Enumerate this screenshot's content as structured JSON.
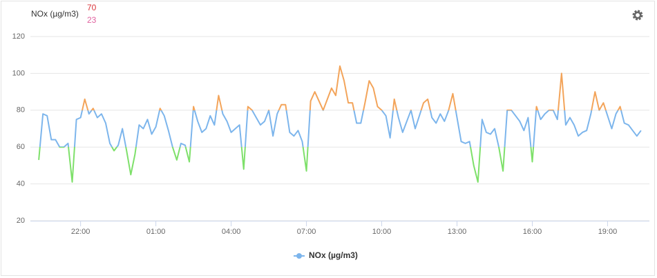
{
  "chart_data": {
    "type": "line",
    "title": "NOx (µg/m3)",
    "header_stats": [
      70,
      23
    ],
    "header_colors": [
      "#d9343a",
      "#e0609e"
    ],
    "x": [
      "20:20",
      "20:30",
      "20:40",
      "20:50",
      "21:00",
      "21:10",
      "21:20",
      "21:30",
      "21:40",
      "21:50",
      "22:00",
      "22:10",
      "22:20",
      "22:30",
      "22:40",
      "22:50",
      "23:00",
      "23:10",
      "23:20",
      "23:30",
      "23:40",
      "23:50",
      "00:00",
      "00:10",
      "00:20",
      "00:30",
      "00:40",
      "00:50",
      "01:00",
      "01:10",
      "01:20",
      "01:30",
      "01:40",
      "01:50",
      "02:00",
      "02:10",
      "02:20",
      "02:30",
      "02:40",
      "02:50",
      "03:00",
      "03:10",
      "03:20",
      "03:30",
      "03:40",
      "03:50",
      "04:00",
      "04:10",
      "04:20",
      "04:30",
      "04:40",
      "04:50",
      "05:00",
      "05:10",
      "05:20",
      "05:30",
      "05:40",
      "05:50",
      "06:00",
      "06:10",
      "06:20",
      "06:30",
      "06:40",
      "06:50",
      "07:00",
      "07:10",
      "07:20",
      "07:30",
      "07:40",
      "07:50",
      "08:00",
      "08:10",
      "08:20",
      "08:30",
      "08:40",
      "08:50",
      "09:00",
      "09:10",
      "09:20",
      "09:30",
      "09:40",
      "09:50",
      "10:00",
      "10:10",
      "10:20",
      "10:30",
      "10:40",
      "10:50",
      "11:00",
      "11:10",
      "11:20",
      "11:30",
      "11:40",
      "11:50",
      "12:00",
      "12:10",
      "12:20",
      "12:30",
      "12:40",
      "12:50",
      "13:00",
      "13:10",
      "13:20",
      "13:30",
      "13:40",
      "13:50",
      "14:00",
      "14:10",
      "14:20",
      "14:30",
      "14:40",
      "14:50",
      "15:00",
      "15:10",
      "15:20",
      "15:30",
      "15:40",
      "15:50",
      "16:00",
      "16:10",
      "16:20",
      "16:30",
      "16:40",
      "16:50",
      "17:00",
      "17:10",
      "17:20",
      "17:30",
      "17:40",
      "17:50",
      "18:00",
      "18:10",
      "18:20",
      "18:30",
      "18:40",
      "18:50",
      "19:00",
      "19:10",
      "19:20",
      "19:30",
      "19:40",
      "19:50",
      "20:00",
      "20:10",
      "20:20"
    ],
    "series": [
      {
        "name": "NOx (µg/m3)",
        "color": "#7cb5ec",
        "values": [
          53,
          78,
          77,
          64,
          64,
          60,
          60,
          62,
          41,
          75,
          76,
          86,
          78,
          81,
          76,
          78,
          73,
          62,
          58,
          61,
          70,
          58,
          45,
          56,
          72,
          70,
          75,
          67,
          71,
          81,
          77,
          69,
          60,
          53,
          62,
          61,
          52,
          82,
          74,
          68,
          70,
          77,
          72,
          88,
          78,
          74,
          68,
          70,
          72,
          48,
          82,
          80,
          76,
          72,
          74,
          80,
          66,
          78,
          83,
          83,
          68,
          66,
          69,
          63,
          47,
          85,
          90,
          85,
          80,
          86,
          92,
          88,
          104,
          96,
          84,
          84,
          73,
          73,
          84,
          96,
          92,
          82,
          80,
          77,
          65,
          86,
          76,
          68,
          74,
          80,
          70,
          77,
          84,
          86,
          76,
          73,
          78,
          74,
          80,
          89,
          76,
          63,
          62,
          63,
          50,
          41,
          75,
          68,
          67,
          70,
          60,
          47,
          80,
          80,
          77,
          74,
          69,
          76,
          52,
          82,
          75,
          78,
          80,
          80,
          75,
          100,
          72,
          76,
          72,
          66,
          68,
          69,
          78,
          90,
          80,
          84,
          77,
          70,
          78,
          82,
          73,
          72,
          69,
          66,
          69
        ]
      }
    ],
    "zones": [
      {
        "to": 60,
        "color": "#7ee06a"
      },
      {
        "to": 80,
        "color": "#7cb5ec"
      },
      {
        "color": "#f3a45a"
      }
    ],
    "xlim": [
      "20:00",
      "20:40"
    ],
    "xticks": [
      "22:00",
      "01:00",
      "04:00",
      "07:00",
      "10:00",
      "13:00",
      "16:00",
      "19:00"
    ],
    "ylim": [
      20,
      120
    ],
    "yticks": [
      20,
      40,
      60,
      80,
      100,
      120
    ],
    "grid": true,
    "legend": "bottom"
  }
}
